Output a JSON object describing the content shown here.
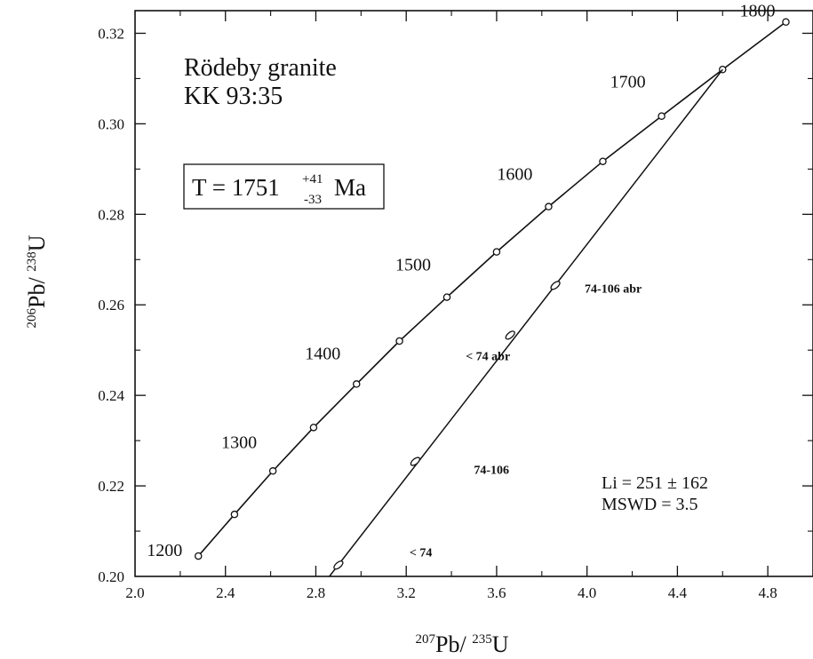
{
  "chart_data": {
    "type": "scatter",
    "title": "",
    "xlabel": {
      "sup1": "207",
      "base1": "Pb/ ",
      "sup2": "235",
      "base2": "U"
    },
    "ylabel": {
      "sup1": "206",
      "base1": "Pb/ ",
      "sup2": "238",
      "base2": "U"
    },
    "xlim": [
      2.0,
      5.0
    ],
    "ylim": [
      0.2,
      0.325
    ],
    "x_ticks": [
      2.0,
      2.4,
      2.8,
      3.2,
      3.6,
      4.0,
      4.4,
      4.8
    ],
    "x_tick_labels": [
      "2.0",
      "2.4",
      "2.8",
      "3.2",
      "3.6",
      "4.0",
      "4.4",
      "4.8"
    ],
    "y_ticks": [
      0.2,
      0.22,
      0.24,
      0.26,
      0.28,
      0.3,
      0.32
    ],
    "y_tick_labels": [
      "0.20",
      "0.22",
      "0.24",
      "0.26",
      "0.28",
      "0.30",
      "0.32"
    ],
    "concordia": {
      "points": [
        {
          "age": 1200,
          "x": 2.28,
          "y": 0.2045
        },
        {
          "age": 1250,
          "x": 2.44,
          "y": 0.2137
        },
        {
          "age": 1300,
          "x": 2.61,
          "y": 0.2233
        },
        {
          "age": 1350,
          "x": 2.79,
          "y": 0.2329
        },
        {
          "age": 1400,
          "x": 2.98,
          "y": 0.2425
        },
        {
          "age": 1450,
          "x": 3.17,
          "y": 0.252
        },
        {
          "age": 1500,
          "x": 3.38,
          "y": 0.2617
        },
        {
          "age": 1550,
          "x": 3.6,
          "y": 0.2717
        },
        {
          "age": 1600,
          "x": 3.83,
          "y": 0.2817
        },
        {
          "age": 1650,
          "x": 4.07,
          "y": 0.2917
        },
        {
          "age": 1700,
          "x": 4.33,
          "y": 0.3017
        },
        {
          "age": 1750,
          "x": 4.6,
          "y": 0.312
        },
        {
          "age": 1800,
          "x": 4.88,
          "y": 0.3225
        }
      ],
      "age_labels": [
        {
          "text": "1200",
          "age": 1200
        },
        {
          "text": "1300",
          "age": 1300
        },
        {
          "text": "1400",
          "age": 1400
        },
        {
          "text": "1500",
          "age": 1500
        },
        {
          "text": "1600",
          "age": 1600
        },
        {
          "text": "1700",
          "age": 1700
        },
        {
          "text": "1800",
          "age": 1800
        }
      ]
    },
    "discordia": {
      "upper_intercept": {
        "x": 4.6,
        "y": 0.312
      },
      "line_end": {
        "x": 2.86,
        "y": 0.2
      }
    },
    "data_ellipses": [
      {
        "label": "74-106 abr",
        "x": 3.86,
        "y": 0.2643
      },
      {
        "label": "< 74 abr",
        "x": 3.66,
        "y": 0.2533
      },
      {
        "label": "74-106",
        "x": 3.24,
        "y": 0.2254
      },
      {
        "label": "< 74",
        "x": 2.9,
        "y": 0.2025
      }
    ],
    "annotations": {
      "sample_name": "Rödeby granite",
      "sample_id": "KK 93:35",
      "age_prefix": "T = 1751",
      "age_plus": "+41",
      "age_minus": "-33",
      "age_unit": "Ma",
      "lower_intercept": "Li = 251 ± 162",
      "mswd": "MSWD = 3.5"
    },
    "grid": false,
    "legend": "none"
  }
}
